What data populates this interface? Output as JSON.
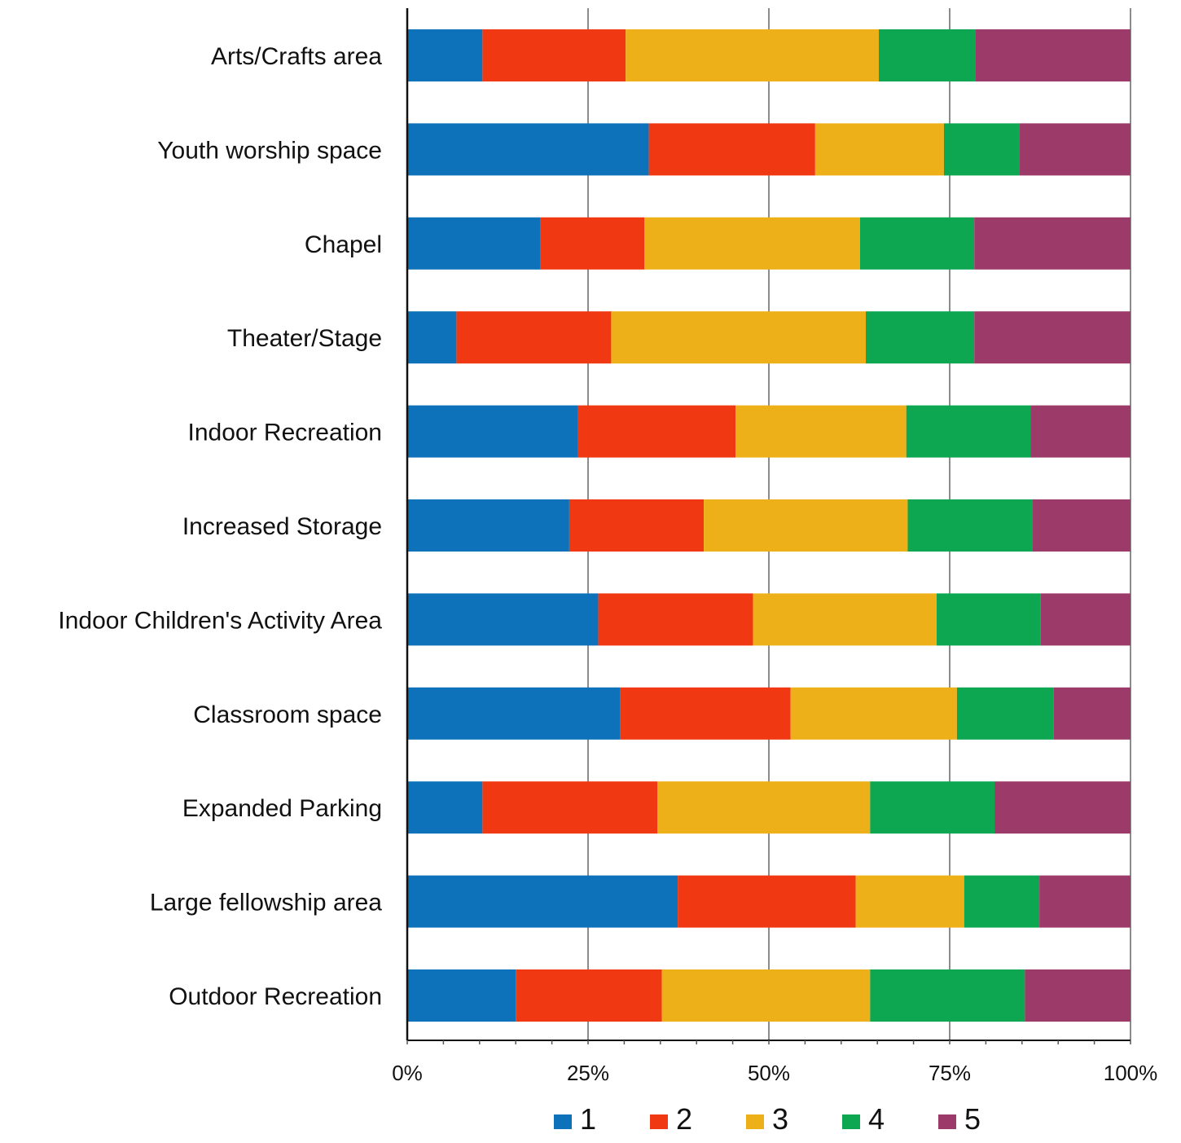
{
  "chart_data": {
    "type": "bar",
    "orientation": "horizontal",
    "stacked": "percent",
    "categories": [
      "Arts/Crafts area",
      "Youth worship space",
      "Chapel",
      "Theater/Stage",
      "Indoor Recreation",
      "Increased Storage",
      "Indoor Children's Activity Area",
      "Classroom space",
      "Expanded Parking",
      "Large fellowship area",
      "Outdoor Recreation"
    ],
    "series": [
      {
        "name": "1",
        "color": "#0D72B9",
        "values": [
          10.4,
          33.4,
          18.4,
          6.8,
          23.6,
          22.4,
          26.4,
          29.4,
          10.4,
          37.4,
          15.0
        ]
      },
      {
        "name": "2",
        "color": "#F03812",
        "values": [
          19.8,
          23.0,
          14.4,
          21.4,
          21.8,
          18.6,
          21.4,
          23.6,
          24.2,
          24.6,
          20.2
        ]
      },
      {
        "name": "3",
        "color": "#EDB018",
        "values": [
          35.0,
          17.8,
          29.8,
          35.2,
          23.6,
          28.2,
          25.4,
          23.0,
          29.4,
          15.0,
          28.8
        ]
      },
      {
        "name": "4",
        "color": "#0DA651",
        "values": [
          13.4,
          10.4,
          15.8,
          15.0,
          17.2,
          17.2,
          14.4,
          13.4,
          17.2,
          10.4,
          21.4
        ]
      },
      {
        "name": "5",
        "color": "#9C3A69",
        "values": [
          21.4,
          15.4,
          21.6,
          21.6,
          13.8,
          13.6,
          12.4,
          10.6,
          18.8,
          12.6,
          14.6
        ]
      }
    ],
    "x_ticks": [
      "0%",
      "25%",
      "50%",
      "75%",
      "100%"
    ],
    "xlim": [
      0,
      100
    ],
    "title": "",
    "xlabel": "",
    "ylabel": "",
    "grid": "vertical",
    "legend": "bottom-center"
  }
}
